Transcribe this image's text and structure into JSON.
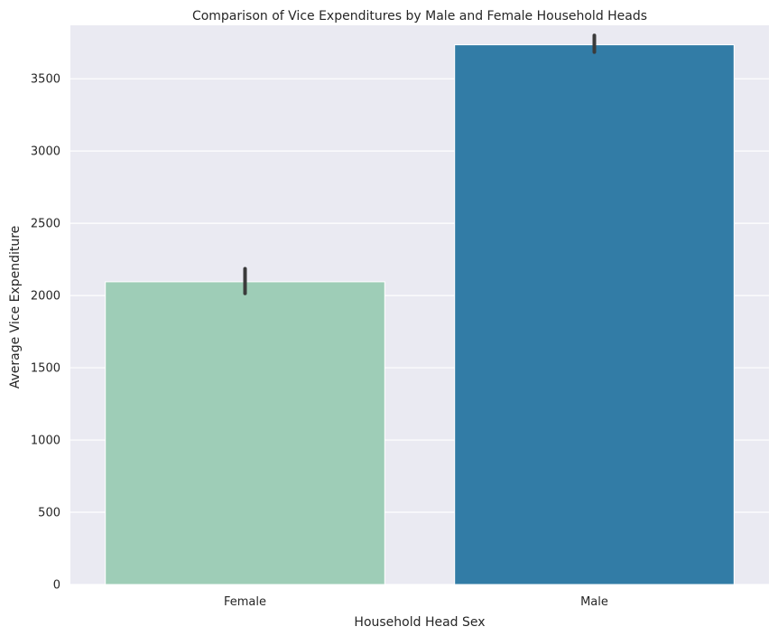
{
  "chart_data": {
    "type": "bar",
    "title": "Comparison of Vice Expenditures by Male and Female Household Heads",
    "xlabel": "Household Head Sex",
    "ylabel": "Average Vice Expenditure",
    "categories": [
      "Female",
      "Male"
    ],
    "values": [
      2095,
      3735
    ],
    "error_bars": [
      {
        "low": 2015,
        "high": 2185
      },
      {
        "low": 3685,
        "high": 3800
      }
    ],
    "colors": [
      "#9ecdb7",
      "#327ca6"
    ],
    "error_color": "#3b3b3b",
    "background_color": "#eaeaf2",
    "grid_color": "#ffffff",
    "ylim": [
      0,
      3870
    ],
    "yticks": [
      0,
      500,
      1000,
      1500,
      2000,
      2500,
      3000,
      3500
    ],
    "grid": true
  }
}
